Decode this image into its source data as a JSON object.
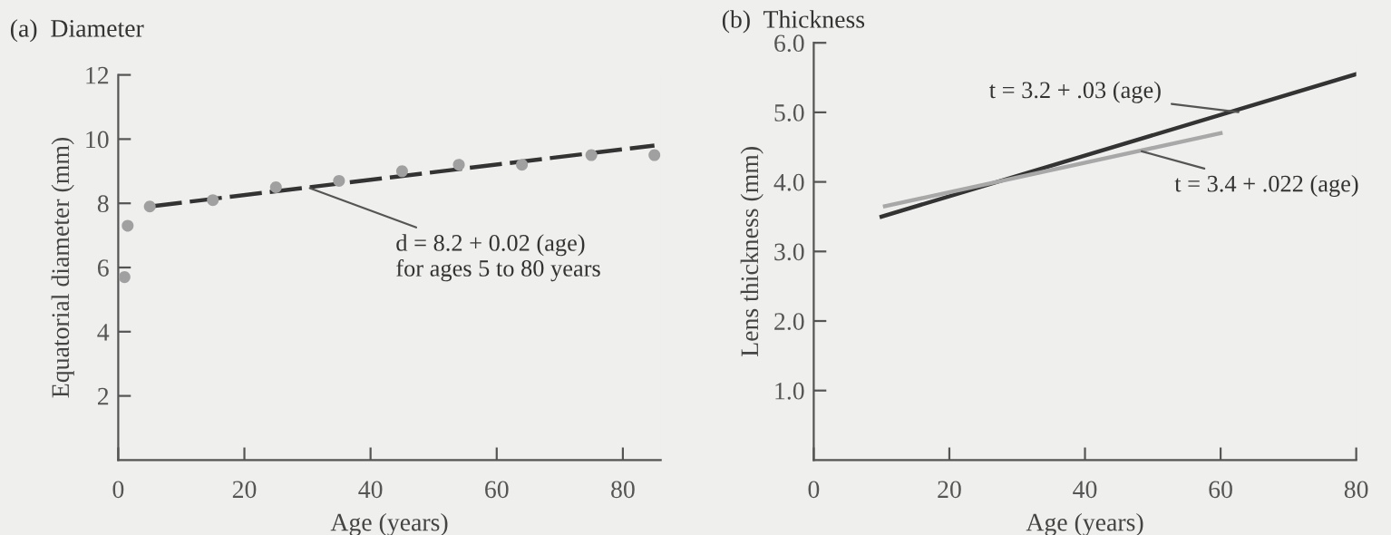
{
  "chart_data": [
    {
      "type": "scatter",
      "title": "(a)  Diameter",
      "xlabel": "Age (years)",
      "ylabel": "Equatorial diameter (mm)",
      "xlim": [
        0,
        86
      ],
      "ylim": [
        0,
        12
      ],
      "xticks": [
        0,
        20,
        40,
        60,
        80
      ],
      "yticks": [
        2,
        4,
        6,
        8,
        10,
        12
      ],
      "grid": false,
      "legend": false,
      "series": [
        {
          "color": "#a0a0a0",
          "marker": "circle",
          "x": [
            1,
            1.5,
            5,
            15,
            25,
            35,
            45,
            54,
            64,
            75,
            85
          ],
          "values": [
            5.7,
            7.3,
            7.9,
            8.1,
            8.5,
            8.7,
            9.0,
            9.2,
            9.2,
            9.5,
            9.5
          ]
        },
        {
          "type": "line",
          "color": "#333333",
          "line_style": "dashed",
          "x": [
            5,
            85
          ],
          "values": [
            7.9,
            9.8
          ]
        }
      ],
      "annotations": [
        {
          "text": "d = 8.2 + 0.02 (age)\nfor ages 5 to 80 years",
          "x": 30,
          "y": 8.5
        }
      ]
    },
    {
      "type": "line",
      "title": "(b)  Thickness",
      "xlabel": "Age (years)",
      "ylabel": "Lens thickness (mm)",
      "xlim": [
        0,
        80
      ],
      "ylim": [
        0,
        6
      ],
      "xticks": [
        0,
        20,
        40,
        60,
        80
      ],
      "yticks": [
        {
          "value": 1,
          "label": "1.0"
        },
        {
          "value": 2,
          "label": "2.0"
        },
        {
          "value": 3,
          "label": "3.0"
        },
        {
          "value": 4,
          "label": "4.0"
        },
        {
          "value": 5,
          "label": "5.0"
        },
        {
          "value": 6,
          "label": "6.0"
        }
      ],
      "grid": false,
      "legend": false,
      "series": [
        {
          "color": "#333333",
          "line_style": "solid",
          "x": [
            10,
            80
          ],
          "values": [
            3.5,
            5.55
          ]
        },
        {
          "color": "#a8a8a8",
          "line_style": "solid",
          "x": [
            10.5,
            60
          ],
          "values": [
            3.65,
            4.7
          ]
        }
      ],
      "annotations": [
        {
          "text": "t = 3.2 + .03 (age)",
          "x": 63,
          "y": 5.0
        },
        {
          "text": "t = 3.4 + .022 (age)",
          "x": 48,
          "y": 4.45
        }
      ]
    }
  ]
}
